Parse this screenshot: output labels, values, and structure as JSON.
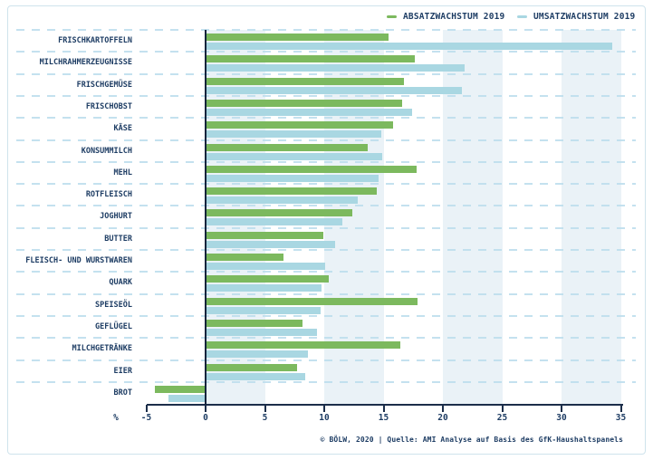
{
  "legend": {
    "position": "top-right"
  },
  "chart_data": {
    "type": "bar",
    "orientation": "horizontal",
    "title": "",
    "xlabel": "%",
    "ylabel": "",
    "xlim": [
      -5,
      35
    ],
    "ticks": [
      -5,
      0,
      5,
      10,
      15,
      20,
      25,
      30,
      35
    ],
    "grid": "dashed-horizontal-lines",
    "legend_position": "top-right",
    "band_color": "#eaf2f7",
    "axis_color": "#1c2e4a",
    "text_color": "#1e3d64",
    "categories": [
      "FRISCHKARTOFFELN",
      "MILCHRAHMERZEUGNISSE",
      "FRISCHGEMÜSE",
      "FRISCHOBST",
      "KÄSE",
      "KONSUMMILCH",
      "MEHL",
      "ROTFLEISCH",
      "JOGHURT",
      "BUTTER",
      "FLEISCH- UND WURSTWAREN",
      "QUARK",
      "SPEISEÖL",
      "GEFLÜGEL",
      "MILCHGETRÄNKE",
      "EIER",
      "BROT"
    ],
    "series": [
      {
        "name": "ABSATZWACHSTUM 2019",
        "color": "#7cb95e",
        "values": [
          15.4,
          17.6,
          16.7,
          16.6,
          15.8,
          13.7,
          17.8,
          14.4,
          12.4,
          9.9,
          6.6,
          10.4,
          17.9,
          8.2,
          16.4,
          7.7,
          -4.3
        ]
      },
      {
        "name": "UMSATZWACHSTUM 2019",
        "color": "#a9d7e2",
        "values": [
          34.3,
          21.8,
          21.6,
          17.4,
          14.8,
          14.9,
          14.6,
          12.8,
          11.5,
          10.9,
          10.1,
          9.8,
          9.7,
          9.4,
          8.6,
          8.4,
          -3.1
        ]
      }
    ]
  },
  "footer": {
    "text": "© BÖLW, 2020 | Quelle: AMI Analyse auf Basis des GfK-Haushaltspanels"
  }
}
